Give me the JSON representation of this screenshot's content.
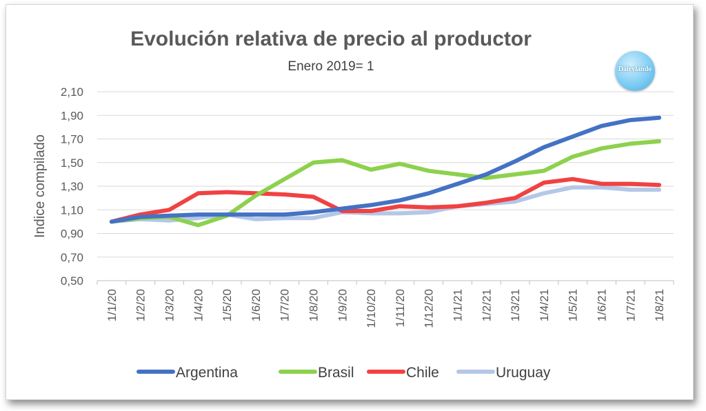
{
  "chart_data": {
    "type": "line",
    "title": "Evolución relativa de precio al productor",
    "subtitle": "Enero 2019= 1",
    "ylabel": "Indice compilado",
    "xlabel": "",
    "ylim": [
      0.5,
      2.1
    ],
    "yticks": [
      "0,50",
      "0,70",
      "0,90",
      "1,10",
      "1,30",
      "1,50",
      "1,70",
      "1,90",
      "2,10"
    ],
    "categories": [
      "1/1/20",
      "1/2/20",
      "1/3/20",
      "1/4/20",
      "1/5/20",
      "1/6/20",
      "1/7/20",
      "1/8/20",
      "1/9/20",
      "1/10/20",
      "1/11/20",
      "1/12/20",
      "1/1/21",
      "1/2/21",
      "1/3/21",
      "1/4/21",
      "1/5/21",
      "1/6/21",
      "1/7/21",
      "1/8/21"
    ],
    "grid": true,
    "legend_position": "bottom",
    "series": [
      {
        "name": "Argentina",
        "color": "#4472C4",
        "values": [
          1.0,
          1.04,
          1.05,
          1.06,
          1.06,
          1.06,
          1.06,
          1.08,
          1.11,
          1.14,
          1.18,
          1.24,
          1.32,
          1.4,
          1.51,
          1.63,
          1.72,
          1.81,
          1.86,
          1.88
        ]
      },
      {
        "name": "Brasil",
        "color": "#8DD14D",
        "values": [
          1.0,
          1.03,
          1.04,
          0.97,
          1.05,
          1.22,
          1.36,
          1.5,
          1.52,
          1.44,
          1.49,
          1.43,
          1.4,
          1.37,
          1.4,
          1.43,
          1.55,
          1.62,
          1.66,
          1.68
        ]
      },
      {
        "name": "Chile",
        "color": "#F04242",
        "values": [
          1.0,
          1.06,
          1.1,
          1.24,
          1.25,
          1.24,
          1.23,
          1.21,
          1.09,
          1.09,
          1.13,
          1.12,
          1.13,
          1.16,
          1.2,
          1.33,
          1.36,
          1.32,
          1.32,
          1.31
        ]
      },
      {
        "name": "Uruguay",
        "color": "#B4C7E7",
        "values": [
          1.0,
          1.02,
          1.01,
          1.03,
          1.06,
          1.02,
          1.03,
          1.03,
          1.08,
          1.07,
          1.07,
          1.08,
          1.13,
          1.15,
          1.17,
          1.24,
          1.29,
          1.29,
          1.27,
          1.27
        ]
      }
    ],
    "logo_text": "Dairylando"
  }
}
